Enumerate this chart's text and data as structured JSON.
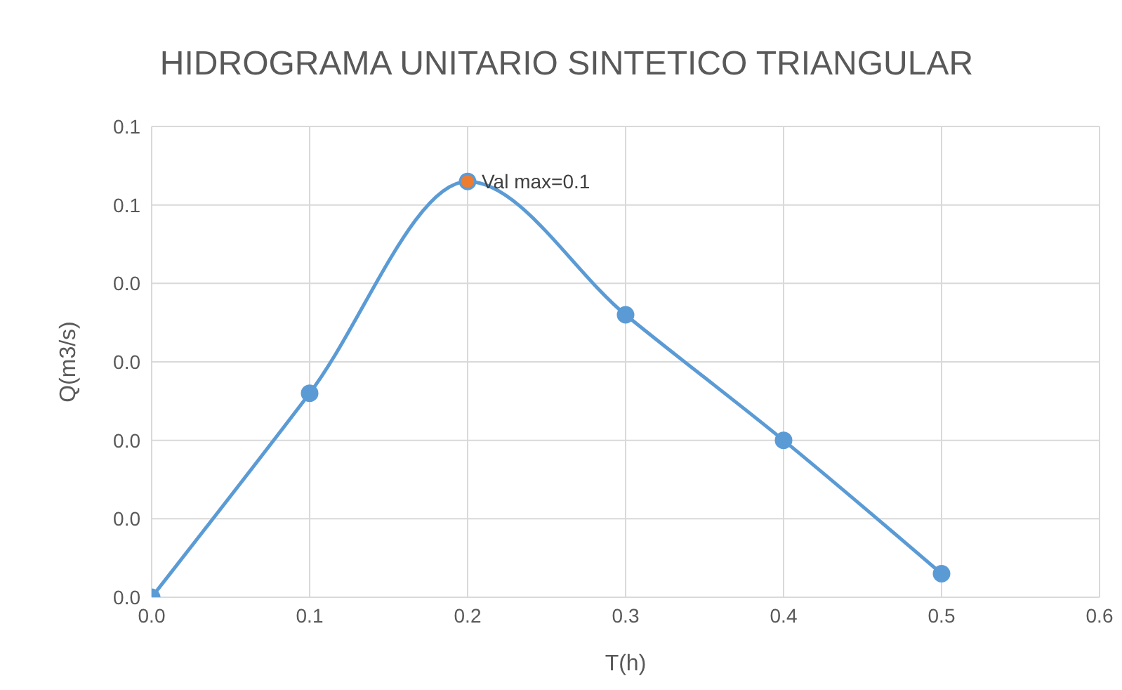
{
  "chart_data": {
    "type": "line",
    "title": "HIDROGRAMA UNITARIO SINTETICO TRIANGULAR",
    "xlabel": "T(h)",
    "ylabel": "Q(m3/s)",
    "series": [
      {
        "color": "#5b9bd5",
        "x": [
          0,
          0.1,
          0.2,
          0.3,
          0.4,
          0.5
        ],
        "values": [
          0,
          0.026,
          0.053,
          0.036,
          0.02,
          0.003
        ]
      },
      {
        "type": "scatter",
        "color": "#ed7d31",
        "x": [
          0.2
        ],
        "values": [
          0.053
        ]
      }
    ],
    "annotations": [
      {
        "text": "Val max=0.1",
        "x": 0.2,
        "y": 0.053
      }
    ],
    "xlim": [
      0,
      0.6
    ],
    "xticks": [
      {
        "value": 0,
        "label": "0.0"
      },
      0.1,
      0.2,
      0.3,
      0.4,
      0.5,
      0.6
    ],
    "ylim": [
      0,
      0.06
    ],
    "yticks": [
      {
        "value": 0,
        "label": "0.0"
      },
      {
        "value": 0.01,
        "label": "0.0"
      },
      {
        "value": 0.02,
        "label": "0.0"
      },
      {
        "value": 0.03,
        "label": "0.0"
      },
      {
        "value": 0.04,
        "label": "0.0"
      },
      {
        "value": 0.05,
        "label": "0.1"
      },
      {
        "value": 0.06,
        "label": "0.1"
      }
    ],
    "grid": true,
    "marker": "circle",
    "legend": false
  }
}
